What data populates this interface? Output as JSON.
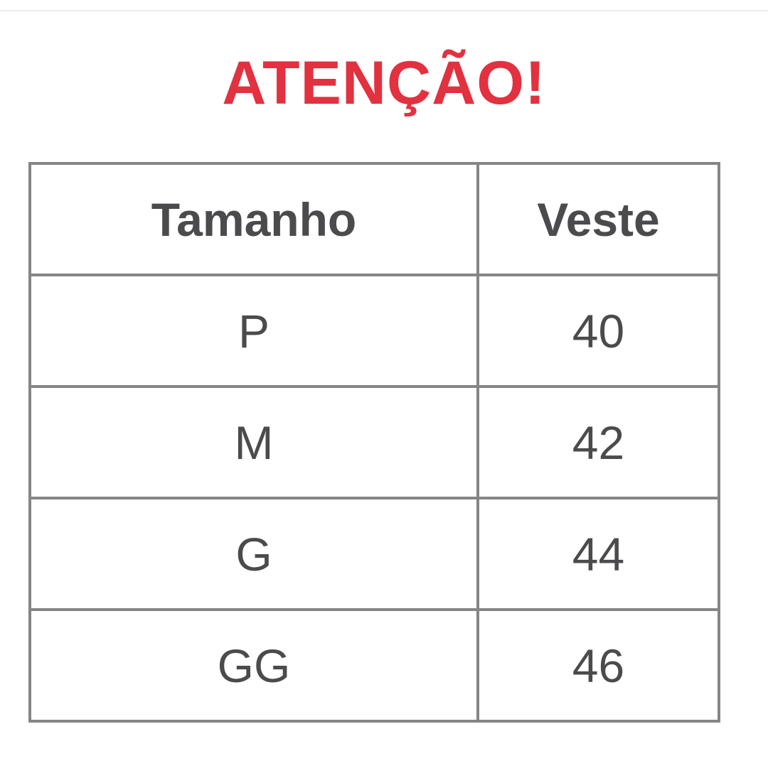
{
  "title": "ATENÇÃO!",
  "colors": {
    "title": "#e2313f",
    "text": "#4b4b4d",
    "border": "#858585"
  },
  "table": {
    "headers": [
      "Tamanho",
      "Veste"
    ],
    "rows": [
      [
        "P",
        "40"
      ],
      [
        "M",
        "42"
      ],
      [
        "G",
        "44"
      ],
      [
        "GG",
        "46"
      ]
    ]
  }
}
